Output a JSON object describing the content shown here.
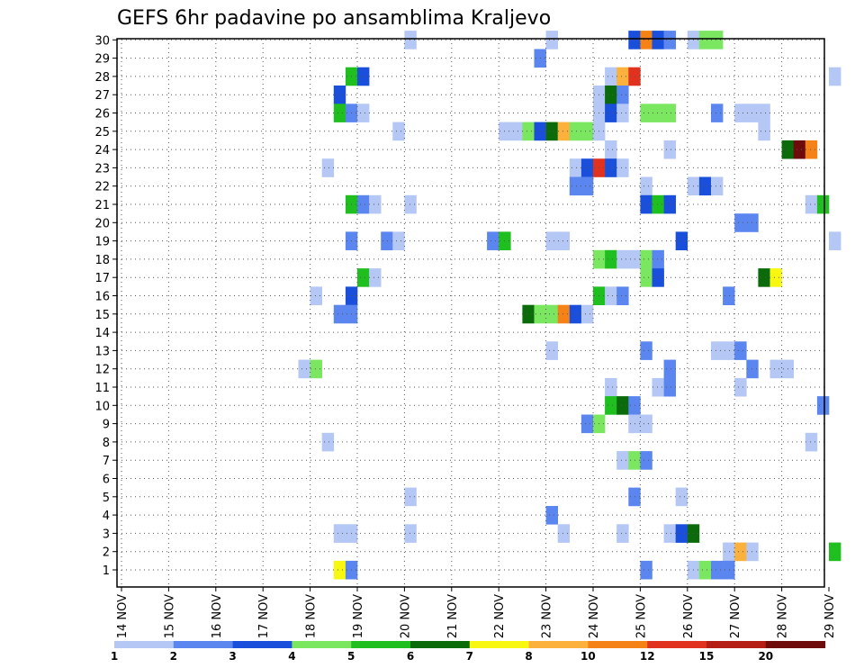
{
  "chart_data": {
    "type": "heatmap",
    "title": "GEFS 6hr padavine po ansamblima Kraljevo",
    "x_ticks": [
      "14 NOV",
      "15 NOV",
      "16 NOV",
      "17 NOV",
      "18 NOV",
      "19 NOV",
      "20 NOV",
      "21 NOV",
      "22 NOV",
      "23 NOV",
      "24 NOV",
      "25 NOV",
      "26 NOV",
      "27 NOV",
      "28 NOV",
      "29 NOV"
    ],
    "y_ticks": [
      "1",
      "2",
      "3",
      "4",
      "5",
      "6",
      "7",
      "8",
      "9",
      "10",
      "11",
      "12",
      "13",
      "14",
      "15",
      "16",
      "17",
      "18",
      "19",
      "20",
      "21",
      "22",
      "23",
      "24",
      "25",
      "26",
      "27",
      "28",
      "29",
      "30"
    ],
    "grid": "dotted",
    "legend": {
      "placement": "bottom",
      "colors": [
        "#b4c7f5",
        "#5b86f0",
        "#1a4fdc",
        "#7be660",
        "#1fbf1f",
        "#0b6b0b",
        "#f7f712",
        "#fbb13c",
        "#f58216",
        "#e0321e",
        "#b41e14",
        "#6e0c0c"
      ],
      "labels": [
        "1",
        "2",
        "3",
        "4",
        "5",
        "6",
        "7",
        "8",
        "10",
        "12",
        "15",
        "20"
      ]
    },
    "cells": [
      {
        "m": 30,
        "t": "20 NOV",
        "v": 1
      },
      {
        "m": 30,
        "t": "23 NOV",
        "v": 1
      },
      {
        "m": 30,
        "t": "24 NOV 18z",
        "v": 3
      },
      {
        "m": 30,
        "t": "25 NOV",
        "v": 10
      },
      {
        "m": 30,
        "t": "25 NOV 06z",
        "v": 3
      },
      {
        "m": 30,
        "t": "25 NOV 12z",
        "v": 2
      },
      {
        "m": 30,
        "t": "26 NOV",
        "v": 1
      },
      {
        "m": 30,
        "t": "26 NOV 06z",
        "v": 4
      },
      {
        "m": 30,
        "t": "26 NOV 12z",
        "v": 4
      },
      {
        "m": 29,
        "t": "22 NOV 18z",
        "v": 2
      },
      {
        "m": 28,
        "t": "18 NOV 18z",
        "v": 5
      },
      {
        "m": 28,
        "t": "19 NOV",
        "v": 3
      },
      {
        "m": 28,
        "t": "24 NOV 06z",
        "v": 1
      },
      {
        "m": 28,
        "t": "24 NOV 12z",
        "v": 8
      },
      {
        "m": 28,
        "t": "24 NOV 18z",
        "v": 12
      },
      {
        "m": 28,
        "t": "29 NOV",
        "v": 1
      },
      {
        "m": 27,
        "t": "18 NOV 12z",
        "v": 3
      },
      {
        "m": 27,
        "t": "24 NOV",
        "v": 1
      },
      {
        "m": 27,
        "t": "24 NOV 06z",
        "v": 6
      },
      {
        "m": 27,
        "t": "24 NOV 12z",
        "v": 2
      },
      {
        "m": 26,
        "t": "18 NOV 12z",
        "v": 5
      },
      {
        "m": 26,
        "t": "18 NOV 18z",
        "v": 2
      },
      {
        "m": 26,
        "t": "19 NOV",
        "v": 1
      },
      {
        "m": 26,
        "t": "24 NOV",
        "v": 1
      },
      {
        "m": 26,
        "t": "24 NOV 06z",
        "v": 3
      },
      {
        "m": 26,
        "t": "24 NOV 12z",
        "v": 1
      },
      {
        "m": 26,
        "t": "25 NOV",
        "v": 4
      },
      {
        "m": 26,
        "t": "25 NOV 06z",
        "v": 4
      },
      {
        "m": 26,
        "t": "25 NOV 12z",
        "v": 4
      },
      {
        "m": 26,
        "t": "26 NOV 12z",
        "v": 2
      },
      {
        "m": 26,
        "t": "27 NOV",
        "v": 1
      },
      {
        "m": 26,
        "t": "27 NOV 06z",
        "v": 1
      },
      {
        "m": 26,
        "t": "27 NOV 12z",
        "v": 1
      },
      {
        "m": 25,
        "t": "19 NOV 18z",
        "v": 1
      },
      {
        "m": 25,
        "t": "22 NOV",
        "v": 1
      },
      {
        "m": 25,
        "t": "22 NOV 06z",
        "v": 1
      },
      {
        "m": 25,
        "t": "22 NOV 12z",
        "v": 4
      },
      {
        "m": 25,
        "t": "22 NOV 18z",
        "v": 3
      },
      {
        "m": 25,
        "t": "23 NOV",
        "v": 6
      },
      {
        "m": 25,
        "t": "23 NOV 06z",
        "v": 8
      },
      {
        "m": 25,
        "t": "23 NOV 12z",
        "v": 4
      },
      {
        "m": 25,
        "t": "23 NOV 18z",
        "v": 4
      },
      {
        "m": 25,
        "t": "24 NOV",
        "v": 1
      },
      {
        "m": 25,
        "t": "27 NOV 12z",
        "v": 1
      },
      {
        "m": 24,
        "t": "24 NOV 06z",
        "v": 1
      },
      {
        "m": 24,
        "t": "25 NOV 12z",
        "v": 1
      },
      {
        "m": 24,
        "t": "28 NOV",
        "v": 6
      },
      {
        "m": 24,
        "t": "28 NOV 06z",
        "v": 20
      },
      {
        "m": 24,
        "t": "28 NOV 12z",
        "v": 10
      },
      {
        "m": 23,
        "t": "18 NOV 06z",
        "v": 1
      },
      {
        "m": 23,
        "t": "23 NOV 12z",
        "v": 1
      },
      {
        "m": 23,
        "t": "23 NOV 18z",
        "v": 3
      },
      {
        "m": 23,
        "t": "24 NOV",
        "v": 12
      },
      {
        "m": 23,
        "t": "24 NOV 06z",
        "v": 3
      },
      {
        "m": 23,
        "t": "24 NOV 12z",
        "v": 1
      },
      {
        "m": 22,
        "t": "23 NOV 12z",
        "v": 2
      },
      {
        "m": 22,
        "t": "23 NOV 18z",
        "v": 2
      },
      {
        "m": 22,
        "t": "25 NOV",
        "v": 1
      },
      {
        "m": 22,
        "t": "26 NOV",
        "v": 1
      },
      {
        "m": 22,
        "t": "26 NOV 06z",
        "v": 3
      },
      {
        "m": 22,
        "t": "26 NOV 12z",
        "v": 1
      },
      {
        "m": 21,
        "t": "18 NOV 18z",
        "v": 5
      },
      {
        "m": 21,
        "t": "19 NOV",
        "v": 2
      },
      {
        "m": 21,
        "t": "19 NOV 06z",
        "v": 1
      },
      {
        "m": 21,
        "t": "20 NOV",
        "v": 1
      },
      {
        "m": 21,
        "t": "25 NOV",
        "v": 3
      },
      {
        "m": 21,
        "t": "25 NOV 06z",
        "v": 5
      },
      {
        "m": 21,
        "t": "25 NOV 12z",
        "v": 3
      },
      {
        "m": 21,
        "t": "28 NOV 12z",
        "v": 1
      },
      {
        "m": 21,
        "t": "28 NOV 18z",
        "v": 5
      },
      {
        "m": 20,
        "t": "27 NOV",
        "v": 2
      },
      {
        "m": 20,
        "t": "27 NOV 06z",
        "v": 2
      },
      {
        "m": 19,
        "t": "18 NOV 18z",
        "v": 2
      },
      {
        "m": 19,
        "t": "19 NOV 12z",
        "v": 2
      },
      {
        "m": 19,
        "t": "19 NOV 18z",
        "v": 1
      },
      {
        "m": 19,
        "t": "21 NOV 18z",
        "v": 2
      },
      {
        "m": 19,
        "t": "22 NOV",
        "v": 5
      },
      {
        "m": 19,
        "t": "23 NOV",
        "v": 1
      },
      {
        "m": 19,
        "t": "23 NOV 06z",
        "v": 1
      },
      {
        "m": 19,
        "t": "25 NOV 18z",
        "v": 3
      },
      {
        "m": 19,
        "t": "29 NOV",
        "v": 1
      },
      {
        "m": 18,
        "t": "24 NOV",
        "v": 4
      },
      {
        "m": 18,
        "t": "24 NOV 06z",
        "v": 5
      },
      {
        "m": 18,
        "t": "24 NOV 12z",
        "v": 1
      },
      {
        "m": 18,
        "t": "24 NOV 18z",
        "v": 1
      },
      {
        "m": 18,
        "t": "25 NOV",
        "v": 4
      },
      {
        "m": 18,
        "t": "25 NOV 06z",
        "v": 2
      },
      {
        "m": 17,
        "t": "19 NOV",
        "v": 5
      },
      {
        "m": 17,
        "t": "19 NOV 06z",
        "v": 1
      },
      {
        "m": 17,
        "t": "25 NOV",
        "v": 4
      },
      {
        "m": 17,
        "t": "25 NOV 06z",
        "v": 3
      },
      {
        "m": 17,
        "t": "27 NOV 12z",
        "v": 6
      },
      {
        "m": 17,
        "t": "27 NOV 18z",
        "v": 7
      },
      {
        "m": 16,
        "t": "18 NOV",
        "v": 1
      },
      {
        "m": 16,
        "t": "18 NOV 18z",
        "v": 3
      },
      {
        "m": 16,
        "t": "24 NOV",
        "v": 5
      },
      {
        "m": 16,
        "t": "24 NOV 06z",
        "v": 1
      },
      {
        "m": 16,
        "t": "24 NOV 12z",
        "v": 2
      },
      {
        "m": 16,
        "t": "26 NOV 18z",
        "v": 2
      },
      {
        "m": 15,
        "t": "18 NOV 12z",
        "v": 2
      },
      {
        "m": 15,
        "t": "18 NOV 18z",
        "v": 2
      },
      {
        "m": 15,
        "t": "22 NOV 12z",
        "v": 6
      },
      {
        "m": 15,
        "t": "22 NOV 18z",
        "v": 4
      },
      {
        "m": 15,
        "t": "23 NOV",
        "v": 4
      },
      {
        "m": 15,
        "t": "23 NOV 06z",
        "v": 10
      },
      {
        "m": 15,
        "t": "23 NOV 12z",
        "v": 3
      },
      {
        "m": 15,
        "t": "23 NOV 18z",
        "v": 1
      },
      {
        "m": 13,
        "t": "23 NOV",
        "v": 1
      },
      {
        "m": 13,
        "t": "25 NOV",
        "v": 2
      },
      {
        "m": 13,
        "t": "26 NOV 12z",
        "v": 1
      },
      {
        "m": 13,
        "t": "26 NOV 18z",
        "v": 1
      },
      {
        "m": 13,
        "t": "27 NOV",
        "v": 2
      },
      {
        "m": 12,
        "t": "17 NOV 18z",
        "v": 1
      },
      {
        "m": 12,
        "t": "18 NOV",
        "v": 4
      },
      {
        "m": 12,
        "t": "25 NOV 12z",
        "v": 2
      },
      {
        "m": 12,
        "t": "27 NOV 06z",
        "v": 2
      },
      {
        "m": 12,
        "t": "27 NOV 18z",
        "v": 1
      },
      {
        "m": 12,
        "t": "28 NOV",
        "v": 1
      },
      {
        "m": 11,
        "t": "24 NOV 06z",
        "v": 1
      },
      {
        "m": 11,
        "t": "25 NOV 06z",
        "v": 1
      },
      {
        "m": 11,
        "t": "25 NOV 12z",
        "v": 2
      },
      {
        "m": 11,
        "t": "27 NOV",
        "v": 1
      },
      {
        "m": 10,
        "t": "24 NOV 06z",
        "v": 5
      },
      {
        "m": 10,
        "t": "24 NOV 12z",
        "v": 6
      },
      {
        "m": 10,
        "t": "24 NOV 18z",
        "v": 2
      },
      {
        "m": 10,
        "t": "28 NOV 18z",
        "v": 2
      },
      {
        "m": 9,
        "t": "23 NOV 18z",
        "v": 2
      },
      {
        "m": 9,
        "t": "24 NOV",
        "v": 4
      },
      {
        "m": 9,
        "t": "24 NOV 18z",
        "v": 1
      },
      {
        "m": 9,
        "t": "25 NOV",
        "v": 1
      },
      {
        "m": 8,
        "t": "18 NOV 06z",
        "v": 1
      },
      {
        "m": 8,
        "t": "28 NOV 12z",
        "v": 1
      },
      {
        "m": 7,
        "t": "24 NOV 12z",
        "v": 1
      },
      {
        "m": 7,
        "t": "24 NOV 18z",
        "v": 4
      },
      {
        "m": 7,
        "t": "25 NOV",
        "v": 2
      },
      {
        "m": 5,
        "t": "20 NOV",
        "v": 1
      },
      {
        "m": 5,
        "t": "24 NOV 18z",
        "v": 2
      },
      {
        "m": 5,
        "t": "25 NOV 18z",
        "v": 1
      },
      {
        "m": 4,
        "t": "23 NOV",
        "v": 2
      },
      {
        "m": 3,
        "t": "18 NOV 12z",
        "v": 1
      },
      {
        "m": 3,
        "t": "18 NOV 18z",
        "v": 1
      },
      {
        "m": 3,
        "t": "20 NOV",
        "v": 1
      },
      {
        "m": 3,
        "t": "23 NOV 06z",
        "v": 1
      },
      {
        "m": 3,
        "t": "24 NOV 12z",
        "v": 1
      },
      {
        "m": 3,
        "t": "25 NOV 12z",
        "v": 1
      },
      {
        "m": 3,
        "t": "25 NOV 18z",
        "v": 3
      },
      {
        "m": 3,
        "t": "26 NOV",
        "v": 6
      },
      {
        "m": 2,
        "t": "26 NOV 18z",
        "v": 1
      },
      {
        "m": 2,
        "t": "27 NOV",
        "v": 8
      },
      {
        "m": 2,
        "t": "27 NOV 06z",
        "v": 1
      },
      {
        "m": 2,
        "t": "29 NOV",
        "v": 5
      },
      {
        "m": 1,
        "t": "18 NOV 12z",
        "v": 7
      },
      {
        "m": 1,
        "t": "18 NOV 18z",
        "v": 2
      },
      {
        "m": 1,
        "t": "25 NOV",
        "v": 2
      },
      {
        "m": 1,
        "t": "26 NOV",
        "v": 1
      },
      {
        "m": 1,
        "t": "26 NOV 06z",
        "v": 4
      },
      {
        "m": 1,
        "t": "26 NOV 12z",
        "v": 2
      },
      {
        "m": 1,
        "t": "26 NOV 18z",
        "v": 2
      }
    ]
  }
}
